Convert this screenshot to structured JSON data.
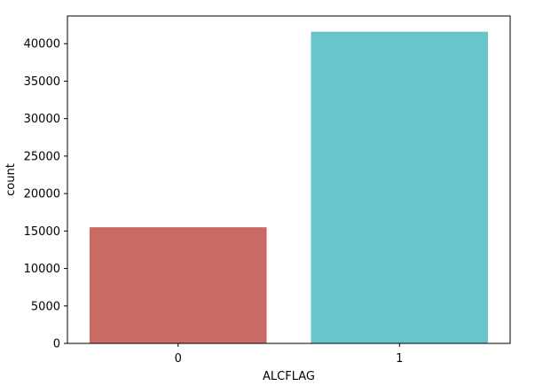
{
  "chart_data": {
    "type": "bar",
    "title": "",
    "xlabel": "ALCFLAG",
    "ylabel": "count",
    "categories": [
      "0",
      "1"
    ],
    "values": [
      15500,
      41600
    ],
    "ylim": [
      0,
      43700
    ],
    "yticks": [
      0,
      5000,
      10000,
      15000,
      20000,
      25000,
      30000,
      35000,
      40000
    ],
    "colors": [
      "#c96a64",
      "#67c5cb"
    ],
    "grid": false,
    "legend": "none"
  }
}
